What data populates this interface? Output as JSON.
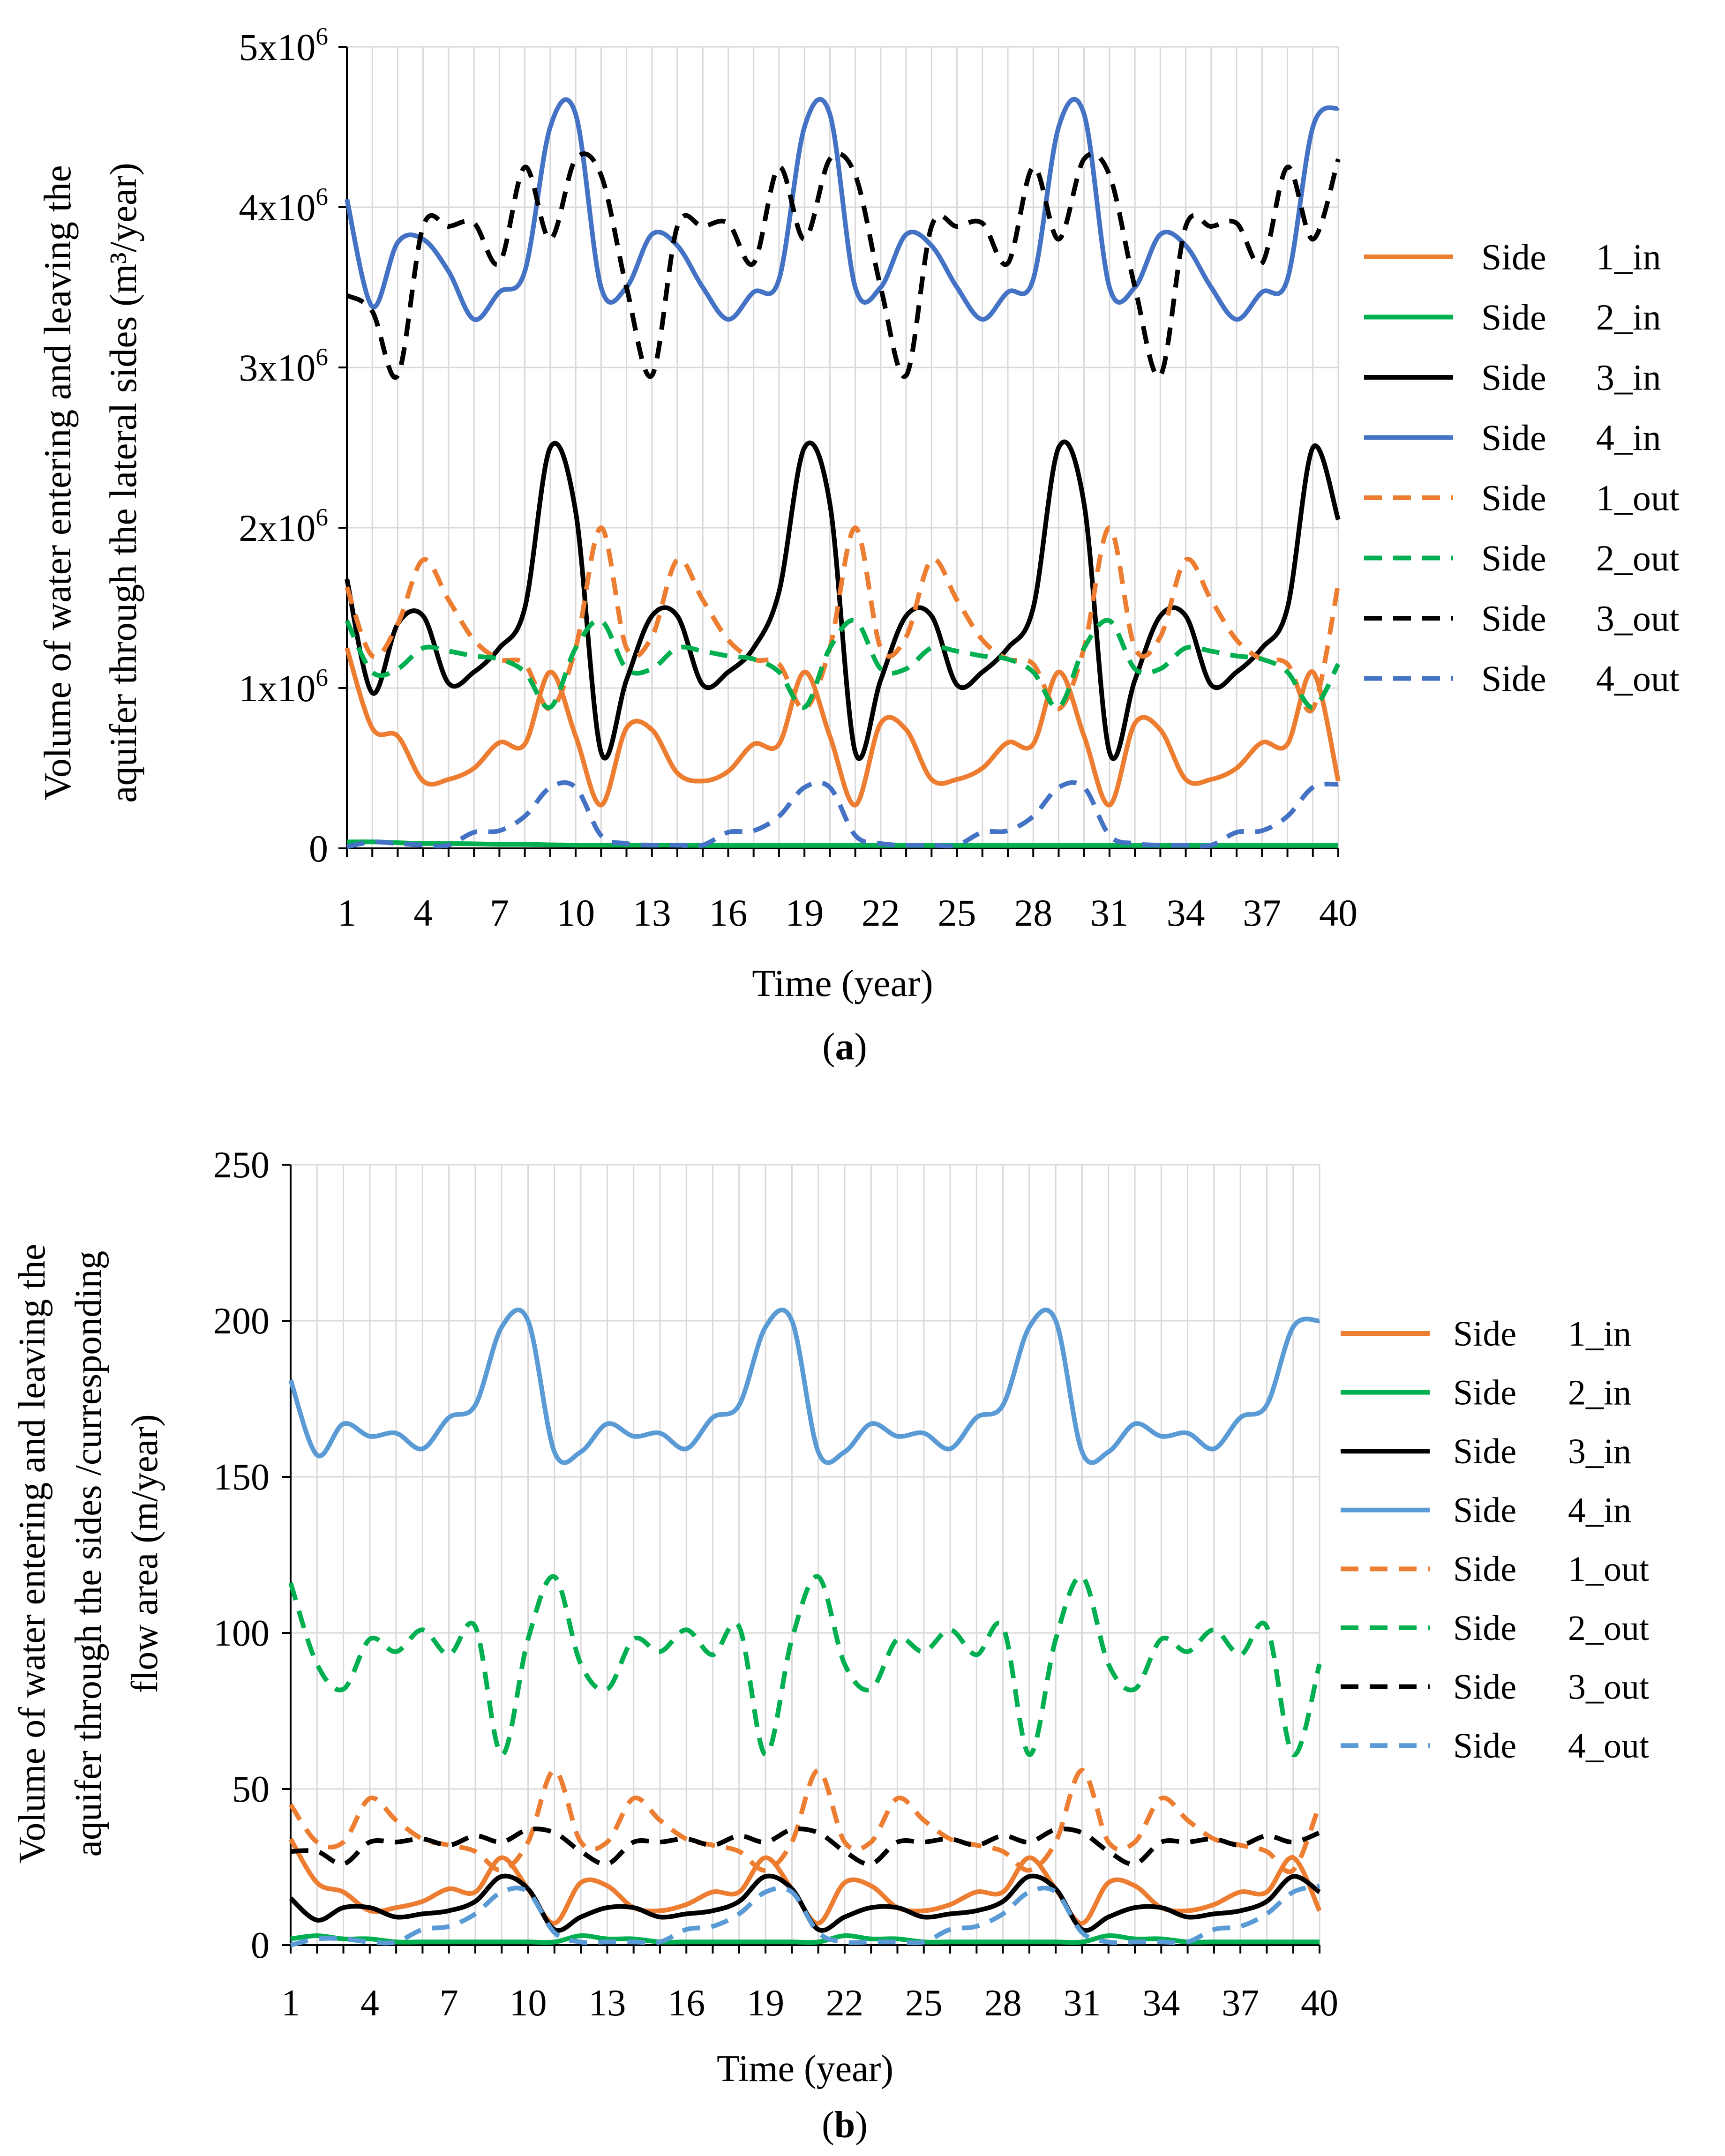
{
  "chart_data": [
    {
      "type": "line",
      "panel_label": "a",
      "xlabel": "Time (year)",
      "ylabel_lines": [
        "Volume of water entering and leaving the",
        "aquifer through the lateral sides (m³/year)"
      ],
      "x_ticks": [
        1,
        4,
        7,
        10,
        13,
        16,
        19,
        22,
        25,
        28,
        31,
        34,
        37,
        40
      ],
      "xlim": [
        1,
        40
      ],
      "ylim": [
        0,
        5000000
      ],
      "y_ticks": [
        0,
        1000000,
        2000000,
        3000000,
        4000000,
        5000000
      ],
      "y_tick_labels": [
        {
          "base": "0",
          "exp": ""
        },
        {
          "base": "1x10",
          "exp": "6"
        },
        {
          "base": "2x10",
          "exp": "6"
        },
        {
          "base": "3x10",
          "exp": "6"
        },
        {
          "base": "4x10",
          "exp": "6"
        },
        {
          "base": "5x10",
          "exp": "6"
        }
      ],
      "grid": true,
      "legend_position": "right",
      "x": [
        1,
        2,
        3,
        4,
        5,
        6,
        7,
        8,
        9,
        10,
        11,
        12,
        13,
        14,
        15,
        16,
        17,
        18,
        19,
        20,
        21,
        22,
        23,
        24,
        25,
        26,
        27,
        28,
        29,
        30,
        31,
        32,
        33,
        34,
        35,
        36,
        37,
        38,
        39,
        40
      ],
      "series": [
        {
          "name": "Side 1_in",
          "label_side": "Side",
          "label_code": "1_in",
          "color": "#ED7D31",
          "dash": "solid",
          "values": [
            1250000,
            750000,
            700000,
            420000,
            430000,
            500000,
            660000,
            650000,
            1100000,
            700000,
            270000,
            750000,
            740000,
            470000,
            420000,
            480000,
            650000,
            650000,
            1100000,
            700000,
            270000,
            780000,
            740000,
            430000,
            430000,
            500000,
            660000,
            650000,
            1100000,
            700000,
            270000,
            780000,
            740000,
            430000,
            430000,
            500000,
            660000,
            650000,
            1100000,
            420000
          ]
        },
        {
          "name": "Side 2_in",
          "label_side": "Side",
          "label_code": "2_in",
          "color": "#00B050",
          "dash": "solid",
          "values": [
            40000,
            40000,
            35000,
            30000,
            30000,
            28000,
            25000,
            25000,
            22000,
            20000,
            20000,
            20000,
            20000,
            20000,
            18000,
            18000,
            18000,
            18000,
            18000,
            18000,
            18000,
            18000,
            18000,
            18000,
            18000,
            18000,
            18000,
            18000,
            18000,
            18000,
            18000,
            18000,
            18000,
            18000,
            18000,
            18000,
            18000,
            18000,
            18000,
            18000
          ]
        },
        {
          "name": "Side 3_in",
          "label_side": "Side",
          "label_code": "3_in",
          "color": "#000000",
          "dash": "solid",
          "values": [
            1680000,
            970000,
            1400000,
            1450000,
            1030000,
            1100000,
            1250000,
            1500000,
            2500000,
            2100000,
            600000,
            1050000,
            1450000,
            1450000,
            1020000,
            1100000,
            1250000,
            1600000,
            2500000,
            2150000,
            600000,
            1050000,
            1450000,
            1450000,
            1020000,
            1100000,
            1250000,
            1500000,
            2500000,
            2150000,
            600000,
            1050000,
            1450000,
            1450000,
            1020000,
            1100000,
            1250000,
            1500000,
            2500000,
            2050000
          ]
        },
        {
          "name": "Side 4_in",
          "label_side": "Side",
          "label_code": "4_in",
          "color": "#4472C4",
          "dash": "solid",
          "values": [
            4050000,
            3380000,
            3780000,
            3800000,
            3600000,
            3300000,
            3470000,
            3600000,
            4500000,
            4580000,
            3500000,
            3500000,
            3830000,
            3760000,
            3500000,
            3300000,
            3470000,
            3550000,
            4500000,
            4580000,
            3500000,
            3500000,
            3830000,
            3760000,
            3500000,
            3300000,
            3470000,
            3550000,
            4500000,
            4580000,
            3500000,
            3500000,
            3830000,
            3760000,
            3500000,
            3300000,
            3470000,
            3550000,
            4500000,
            4620000
          ]
        },
        {
          "name": "Side 1_out",
          "label_side": "Side",
          "label_code": "1_out",
          "color": "#ED7D31",
          "dash": "dash",
          "values": [
            1630000,
            1200000,
            1400000,
            1800000,
            1550000,
            1300000,
            1180000,
            1150000,
            870000,
            1250000,
            2000000,
            1250000,
            1320000,
            1800000,
            1550000,
            1300000,
            1180000,
            1150000,
            870000,
            1250000,
            2000000,
            1250000,
            1320000,
            1800000,
            1550000,
            1300000,
            1180000,
            1150000,
            870000,
            1250000,
            2000000,
            1250000,
            1320000,
            1800000,
            1550000,
            1300000,
            1180000,
            1150000,
            870000,
            1650000
          ]
        },
        {
          "name": "Side 2_out",
          "label_side": "Side",
          "label_code": "2_out",
          "color": "#00B050",
          "dash": "dash",
          "values": [
            1420000,
            1100000,
            1120000,
            1250000,
            1230000,
            1200000,
            1180000,
            1100000,
            880000,
            1250000,
            1420000,
            1120000,
            1120000,
            1250000,
            1230000,
            1200000,
            1180000,
            1100000,
            880000,
            1250000,
            1420000,
            1120000,
            1120000,
            1250000,
            1230000,
            1200000,
            1180000,
            1100000,
            880000,
            1250000,
            1420000,
            1120000,
            1120000,
            1250000,
            1230000,
            1200000,
            1180000,
            1100000,
            880000,
            1150000
          ]
        },
        {
          "name": "Side 3_out",
          "label_side": "Side",
          "label_code": "3_out",
          "color": "#000000",
          "dash": "dash",
          "values": [
            3450000,
            3350000,
            2950000,
            3880000,
            3880000,
            3900000,
            3650000,
            4250000,
            3800000,
            4300000,
            4200000,
            3500000,
            2950000,
            3880000,
            3880000,
            3900000,
            3650000,
            4250000,
            3800000,
            4300000,
            4200000,
            3500000,
            2950000,
            3880000,
            3880000,
            3900000,
            3650000,
            4250000,
            3800000,
            4300000,
            4200000,
            3500000,
            2950000,
            3880000,
            3880000,
            3900000,
            3650000,
            4250000,
            3800000,
            4300000
          ]
        },
        {
          "name": "Side 4_out",
          "label_side": "Side",
          "label_code": "4_out",
          "color": "#4472C4",
          "dash": "dash",
          "values": [
            10000,
            40000,
            30000,
            20000,
            20000,
            100000,
            110000,
            200000,
            380000,
            380000,
            80000,
            30000,
            20000,
            20000,
            20000,
            100000,
            110000,
            200000,
            380000,
            380000,
            80000,
            30000,
            20000,
            20000,
            20000,
            100000,
            110000,
            200000,
            380000,
            380000,
            80000,
            30000,
            20000,
            20000,
            20000,
            100000,
            110000,
            200000,
            380000,
            400000
          ]
        }
      ]
    },
    {
      "type": "line",
      "panel_label": "b",
      "xlabel": "Time (year)",
      "ylabel_lines": [
        "Volume of water entering and leaving the",
        "aquifer through the sides /curresponding",
        "flow area (m/year)"
      ],
      "x_ticks": [
        1,
        4,
        7,
        10,
        13,
        16,
        19,
        22,
        25,
        28,
        31,
        34,
        37,
        40
      ],
      "xlim": [
        1,
        40
      ],
      "ylim": [
        0,
        250
      ],
      "y_ticks": [
        0,
        50,
        100,
        150,
        200,
        250
      ],
      "y_tick_labels": [
        {
          "base": "0",
          "exp": ""
        },
        {
          "base": "50",
          "exp": ""
        },
        {
          "base": "100",
          "exp": ""
        },
        {
          "base": "150",
          "exp": ""
        },
        {
          "base": "200",
          "exp": ""
        },
        {
          "base": "250",
          "exp": ""
        }
      ],
      "grid": true,
      "legend_position": "right",
      "x": [
        1,
        2,
        3,
        4,
        5,
        6,
        7,
        8,
        9,
        10,
        11,
        12,
        13,
        14,
        15,
        16,
        17,
        18,
        19,
        20,
        21,
        22,
        23,
        24,
        25,
        26,
        27,
        28,
        29,
        30,
        31,
        32,
        33,
        34,
        35,
        36,
        37,
        38,
        39,
        40
      ],
      "series": [
        {
          "name": "Side 1_in",
          "label_side": "Side",
          "label_code": "1_in",
          "color": "#ED7D31",
          "dash": "solid",
          "values": [
            34,
            20,
            17,
            11,
            12,
            14,
            18,
            17,
            28,
            18,
            7,
            20,
            19,
            12,
            11,
            13,
            17,
            17,
            28,
            18,
            7,
            20,
            19,
            12,
            11,
            13,
            17,
            17,
            28,
            18,
            7,
            20,
            19,
            12,
            11,
            13,
            17,
            17,
            28,
            11
          ]
        },
        {
          "name": "Side 2_in",
          "label_side": "Side",
          "label_code": "2_in",
          "color": "#00B050",
          "dash": "solid",
          "values": [
            2,
            3,
            2,
            2,
            1,
            1,
            1,
            1,
            1,
            1,
            1,
            3,
            2,
            2,
            1,
            1,
            1,
            1,
            1,
            1,
            1,
            3,
            2,
            2,
            1,
            1,
            1,
            1,
            1,
            1,
            1,
            3,
            2,
            2,
            1,
            1,
            1,
            1,
            1,
            1
          ]
        },
        {
          "name": "Side 3_in",
          "label_side": "Side",
          "label_code": "3_in",
          "color": "#000000",
          "dash": "solid",
          "values": [
            15,
            8,
            12,
            12,
            9,
            10,
            11,
            14,
            22,
            18,
            5,
            9,
            12,
            12,
            9,
            10,
            11,
            14,
            22,
            18,
            5,
            9,
            12,
            12,
            9,
            10,
            11,
            14,
            22,
            18,
            5,
            9,
            12,
            12,
            9,
            10,
            11,
            14,
            22,
            17
          ]
        },
        {
          "name": "Side 4_in",
          "label_side": "Side",
          "label_code": "4_in",
          "color": "#5B9BD5",
          "dash": "solid",
          "values": [
            181,
            157,
            167,
            163,
            164,
            159,
            169,
            173,
            198,
            200,
            158,
            158,
            167,
            163,
            164,
            159,
            169,
            173,
            198,
            200,
            158,
            158,
            167,
            163,
            164,
            159,
            169,
            173,
            198,
            200,
            158,
            158,
            167,
            163,
            164,
            159,
            169,
            173,
            198,
            200
          ]
        },
        {
          "name": "Side 1_out",
          "label_side": "Side",
          "label_code": "1_out",
          "color": "#ED7D31",
          "dash": "dash",
          "values": [
            45,
            33,
            33,
            47,
            40,
            34,
            32,
            30,
            24,
            33,
            56,
            33,
            33,
            47,
            40,
            34,
            32,
            30,
            24,
            33,
            56,
            33,
            33,
            47,
            40,
            34,
            32,
            30,
            24,
            33,
            56,
            33,
            33,
            47,
            40,
            34,
            32,
            30,
            24,
            45
          ]
        },
        {
          "name": "Side 2_out",
          "label_side": "Side",
          "label_code": "2_out",
          "color": "#00B050",
          "dash": "dash",
          "values": [
            116,
            90,
            82,
            98,
            94,
            101,
            93,
            102,
            61,
            98,
            118,
            90,
            82,
            98,
            94,
            101,
            93,
            102,
            61,
            98,
            118,
            90,
            82,
            98,
            94,
            101,
            93,
            102,
            61,
            98,
            118,
            90,
            82,
            98,
            94,
            101,
            93,
            102,
            61,
            90
          ]
        },
        {
          "name": "Side 3_out",
          "label_side": "Side",
          "label_code": "3_out",
          "color": "#000000",
          "dash": "dash",
          "values": [
            30,
            30,
            26,
            33,
            33,
            34,
            32,
            35,
            33,
            37,
            36,
            30,
            26,
            33,
            33,
            34,
            32,
            35,
            33,
            37,
            36,
            30,
            26,
            33,
            33,
            34,
            32,
            35,
            33,
            37,
            36,
            30,
            26,
            33,
            33,
            34,
            32,
            35,
            33,
            36
          ]
        },
        {
          "name": "Side 4_out",
          "label_side": "Side",
          "label_code": "4_out",
          "color": "#5B9BD5",
          "dash": "dash",
          "values": [
            0,
            2,
            2,
            1,
            1,
            5,
            6,
            10,
            17,
            17,
            4,
            1,
            1,
            1,
            1,
            5,
            6,
            10,
            17,
            17,
            4,
            1,
            1,
            1,
            1,
            5,
            6,
            10,
            17,
            17,
            4,
            1,
            1,
            1,
            1,
            5,
            6,
            10,
            17,
            19
          ]
        }
      ]
    }
  ]
}
